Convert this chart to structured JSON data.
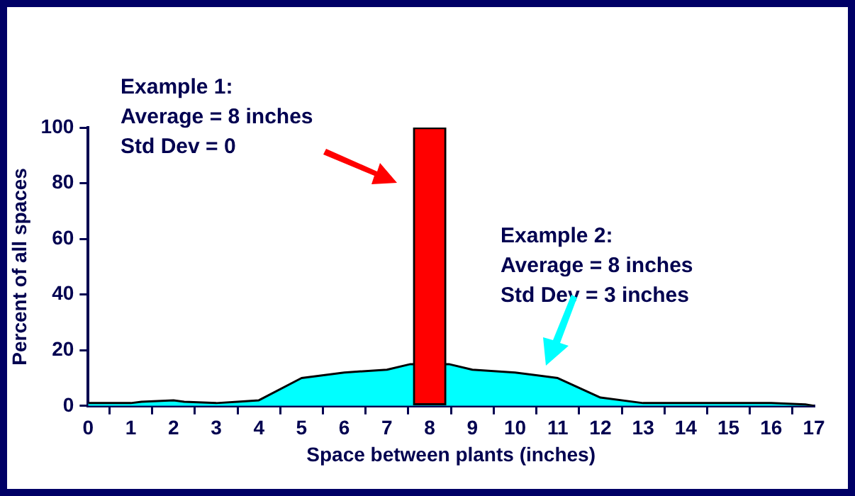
{
  "chart_data": {
    "type": "area",
    "xlabel": "Space between plants (inches)",
    "ylabel": "Percent of all spaces",
    "xlim": [
      0,
      17
    ],
    "xticks": [
      0,
      1,
      2,
      3,
      4,
      5,
      6,
      7,
      8,
      9,
      10,
      11,
      12,
      13,
      14,
      15,
      16,
      17
    ],
    "ylim": [
      0,
      100
    ],
    "yticks": [
      0,
      20,
      40,
      60,
      80,
      100
    ],
    "grid": false,
    "legend": false,
    "series": [
      {
        "color": "#00ffff",
        "x": [
          0,
          1,
          1.25,
          2,
          2.25,
          3,
          3.5,
          4,
          5,
          6,
          7,
          7.55,
          8.45,
          9,
          10,
          11,
          12,
          13,
          14,
          15,
          16,
          16.8,
          17
        ],
        "values": [
          1,
          1,
          1.5,
          2,
          1.5,
          1,
          1.5,
          2,
          10,
          12,
          13,
          15,
          15,
          13,
          12,
          10,
          3,
          1,
          1,
          1,
          1,
          0.5,
          0
        ]
      },
      {
        "type": "bar",
        "color": "#ff0000",
        "x": [
          8
        ],
        "values": [
          100
        ]
      }
    ],
    "annotations": [
      "Example 1:\nAverage = 8 inches\nStd Dev = 0",
      "Example 2:\nAverage = 8 inches\nStd Dev = 3 inches"
    ]
  }
}
